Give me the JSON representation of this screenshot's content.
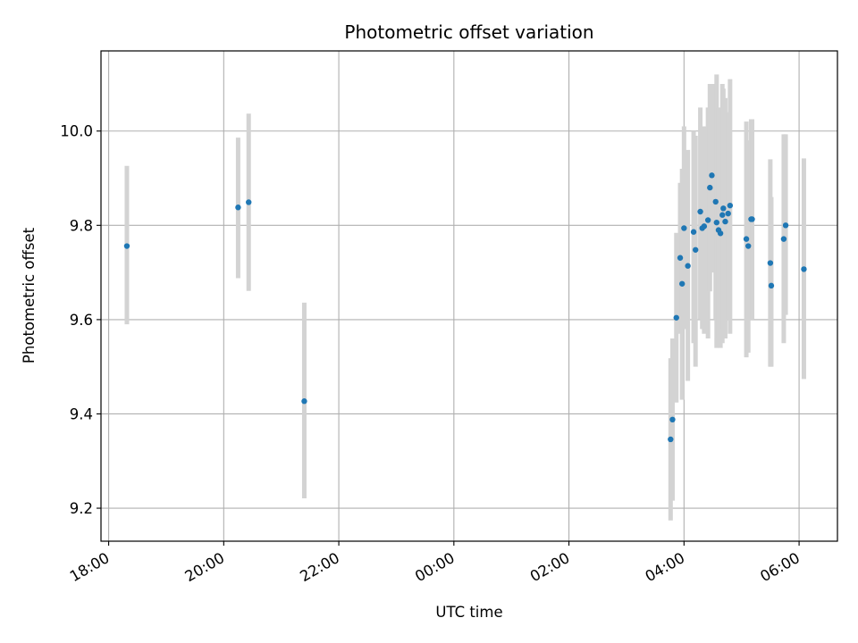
{
  "chart_data": {
    "type": "scatter",
    "title": "Photometric offset variation",
    "xlabel": "UTC time",
    "ylabel": "Photometric offset",
    "x_axis": "time",
    "x_reference_date": "",
    "xlim": [
      "17:52",
      "06:40"
    ],
    "ylim": [
      9.13,
      10.17
    ],
    "x_ticks": [
      "18:00",
      "20:00",
      "22:00",
      "00:00",
      "02:00",
      "04:00",
      "06:00"
    ],
    "y_ticks": [
      9.2,
      9.4,
      9.6,
      9.8,
      10.0
    ],
    "y_tick_labels": [
      "9.2",
      "9.4",
      "9.6",
      "9.8",
      "10.0"
    ],
    "grid": true,
    "marker_color": "#1f77b4",
    "errorbar_color": "#d3d3d3",
    "series": [
      {
        "name": "",
        "points": [
          {
            "x": "18:19",
            "y": 9.756,
            "ylo": 9.59,
            "yhi": 9.926
          },
          {
            "x": "20:15",
            "y": 9.838,
            "ylo": 9.688,
            "yhi": 9.986
          },
          {
            "x": "20:26",
            "y": 9.849,
            "ylo": 9.661,
            "yhi": 10.037
          },
          {
            "x": "21:24",
            "y": 9.427,
            "ylo": 9.221,
            "yhi": 9.636
          },
          {
            "x": "03:46",
            "y": 9.346,
            "ylo": 9.174,
            "yhi": 9.518
          },
          {
            "x": "03:48",
            "y": 9.388,
            "ylo": 9.216,
            "yhi": 9.56
          },
          {
            "x": "03:52",
            "y": 9.604,
            "ylo": 9.424,
            "yhi": 9.784
          },
          {
            "x": "03:56",
            "y": 9.731,
            "ylo": 9.57,
            "yhi": 9.89
          },
          {
            "x": "03:58",
            "y": 9.676,
            "ylo": 9.43,
            "yhi": 9.92
          },
          {
            "x": "04:00",
            "y": 9.794,
            "ylo": 9.58,
            "yhi": 10.01
          },
          {
            "x": "04:04",
            "y": 9.714,
            "ylo": 9.47,
            "yhi": 9.96
          },
          {
            "x": "04:10",
            "y": 9.786,
            "ylo": 9.55,
            "yhi": 10.0
          },
          {
            "x": "04:12",
            "y": 9.748,
            "ylo": 9.5,
            "yhi": 9.99
          },
          {
            "x": "04:17",
            "y": 9.829,
            "ylo": 9.6,
            "yhi": 10.05
          },
          {
            "x": "04:19",
            "y": 9.794,
            "ylo": 9.58,
            "yhi": 10.0
          },
          {
            "x": "04:21",
            "y": 9.798,
            "ylo": 9.57,
            "yhi": 10.01
          },
          {
            "x": "04:25",
            "y": 9.811,
            "ylo": 9.56,
            "yhi": 10.05
          },
          {
            "x": "04:27",
            "y": 9.88,
            "ylo": 9.66,
            "yhi": 10.1
          },
          {
            "x": "04:29",
            "y": 9.906,
            "ylo": 9.7,
            "yhi": 10.1
          },
          {
            "x": "04:33",
            "y": 9.85,
            "ylo": 9.6,
            "yhi": 10.1
          },
          {
            "x": "04:34",
            "y": 9.806,
            "ylo": 9.54,
            "yhi": 10.12
          },
          {
            "x": "04:36",
            "y": 9.79,
            "ylo": 9.56,
            "yhi": 10.05
          },
          {
            "x": "04:38",
            "y": 9.783,
            "ylo": 9.54,
            "yhi": 10.03
          },
          {
            "x": "04:40",
            "y": 9.822,
            "ylo": 9.55,
            "yhi": 10.1
          },
          {
            "x": "04:41",
            "y": 9.836,
            "ylo": 9.58,
            "yhi": 10.09
          },
          {
            "x": "04:43",
            "y": 9.808,
            "ylo": 9.56,
            "yhi": 10.07
          },
          {
            "x": "04:46",
            "y": 9.825,
            "ylo": 9.6,
            "yhi": 10.04
          },
          {
            "x": "04:48",
            "y": 9.842,
            "ylo": 9.57,
            "yhi": 10.11
          },
          {
            "x": "05:05",
            "y": 9.771,
            "ylo": 9.52,
            "yhi": 10.02
          },
          {
            "x": "05:07",
            "y": 9.756,
            "ylo": 9.53,
            "yhi": 9.98
          },
          {
            "x": "05:10",
            "y": 9.813,
            "ylo": 9.6,
            "yhi": 10.025
          },
          {
            "x": "05:11",
            "y": 9.813,
            "ylo": 9.6,
            "yhi": 10.025
          },
          {
            "x": "05:30",
            "y": 9.72,
            "ylo": 9.5,
            "yhi": 9.94
          },
          {
            "x": "05:31",
            "y": 9.672,
            "ylo": 9.5,
            "yhi": 9.86
          },
          {
            "x": "05:44",
            "y": 9.771,
            "ylo": 9.55,
            "yhi": 9.993
          },
          {
            "x": "05:46",
            "y": 9.8,
            "ylo": 9.61,
            "yhi": 9.993
          },
          {
            "x": "06:05",
            "y": 9.707,
            "ylo": 9.474,
            "yhi": 9.942
          }
        ]
      }
    ]
  }
}
